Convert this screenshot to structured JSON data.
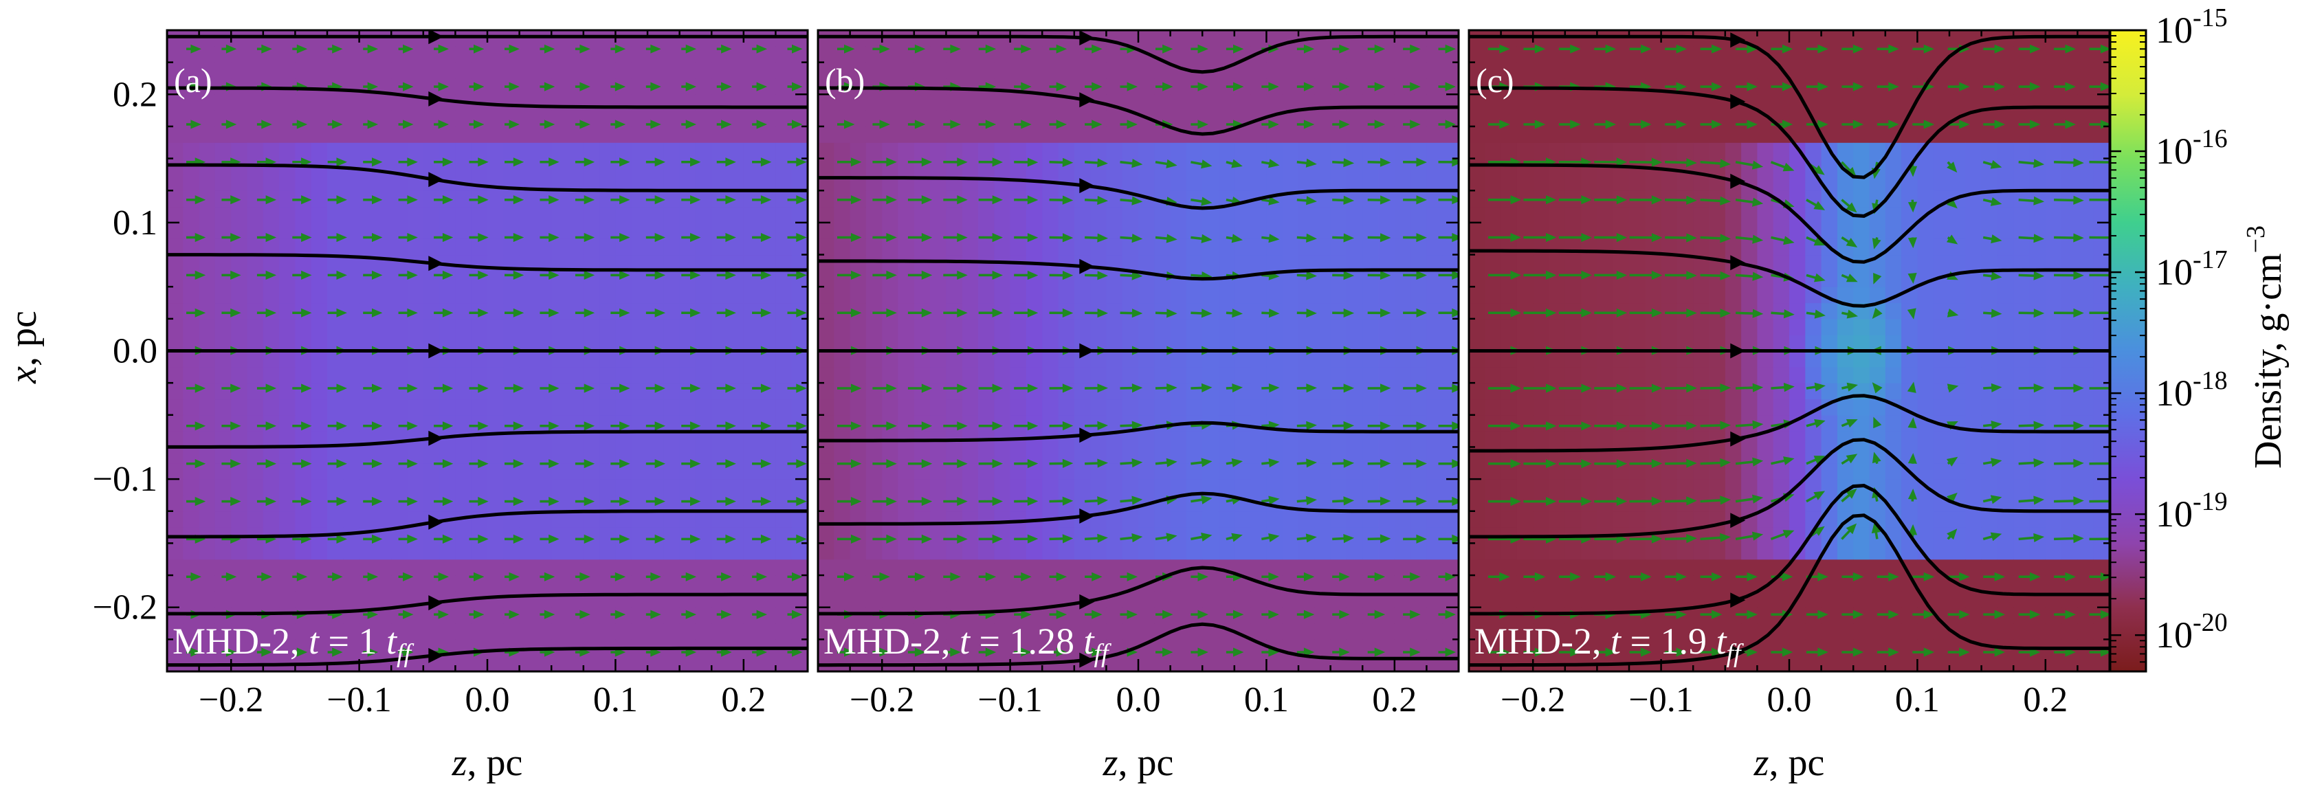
{
  "figure": {
    "colorbar": {
      "label_prefix": "Density, g·cm",
      "label_exponent": "−3",
      "ticks": [
        {
          "base": "10",
          "exp": "-15",
          "value": 1e-15
        },
        {
          "base": "10",
          "exp": "-16",
          "value": 1e-16
        },
        {
          "base": "10",
          "exp": "-17",
          "value": 1e-17
        },
        {
          "base": "10",
          "exp": "-18",
          "value": 1e-18
        },
        {
          "base": "10",
          "exp": "-19",
          "value": 1e-19
        },
        {
          "base": "10",
          "exp": "-20",
          "value": 1e-20
        }
      ],
      "range_log10": [
        -20.3,
        -15.0
      ],
      "colormap": [
        "#7b1c1c",
        "#8f2f4e",
        "#8e44ad",
        "#7a4fd8",
        "#5f6fe6",
        "#4b8fde",
        "#3fb0c0",
        "#3fcf8e",
        "#7be05c",
        "#d4ec3a",
        "#f7f11f"
      ]
    },
    "x_label_symbol": "z",
    "x_label_unit": ", pc",
    "y_label_symbol": "x",
    "y_label_unit": ", pc",
    "arrow_color": "#1f8a1f",
    "fieldline_color": "#000000"
  },
  "chart_data": [
    {
      "type": "heatmap",
      "panel": "(a)",
      "caption_model": "MHD-2, ",
      "caption_t": "t",
      "caption_eq": " = 1 ",
      "caption_tff": "t",
      "caption_sub": "ff",
      "xlabel": "z, pc",
      "ylabel": "x, pc",
      "xlim": [
        -0.25,
        0.25
      ],
      "ylim": [
        -0.25,
        0.25
      ],
      "xticks": [
        "−0.2",
        "−0.1",
        "0.0",
        "0.1",
        "0.2"
      ],
      "xtick_values": [
        -0.2,
        -0.1,
        0.0,
        0.1,
        0.2
      ],
      "yticks": [
        "0.2",
        "0.1",
        "0.0",
        "−0.1",
        "−0.2"
      ],
      "ytick_values": [
        0.2,
        0.1,
        0.0,
        -0.1,
        -0.2
      ],
      "density_log10": {
        "background": -19.3,
        "filament_half_width_pc": 0.16,
        "filament_front_z_pc": -0.18,
        "profile": [
          {
            "z": -0.25,
            "v": -19.3
          },
          {
            "z": -0.18,
            "v": -19.0
          },
          {
            "z": -0.12,
            "v": -18.6
          },
          {
            "z": 0.25,
            "v": -18.5
          }
        ],
        "core": null
      },
      "field_lines": [
        {
          "x0": 0.245,
          "x1": 0.245
        },
        {
          "x0": 0.205,
          "x1": 0.19
        },
        {
          "x0": 0.145,
          "x1": 0.125
        },
        {
          "x0": 0.075,
          "x1": 0.063
        },
        {
          "x0": 0.0,
          "x1": 0.0
        },
        {
          "x0": -0.075,
          "x1": -0.063
        },
        {
          "x0": -0.145,
          "x1": -0.125
        },
        {
          "x0": -0.205,
          "x1": -0.19
        },
        {
          "x0": -0.245,
          "x1": -0.232
        }
      ],
      "velocity_strength": 0.35,
      "collapse": 0.0
    },
    {
      "type": "heatmap",
      "panel": "(b)",
      "caption_model": "MHD-2, ",
      "caption_t": "t",
      "caption_eq": " = 1.28 ",
      "caption_tff": "t",
      "caption_sub": "ff",
      "xlabel": "z, pc",
      "ylabel": "",
      "xlim": [
        -0.25,
        0.25
      ],
      "ylim": [
        -0.25,
        0.25
      ],
      "xticks": [
        "−0.2",
        "−0.1",
        "0.0",
        "0.1",
        "0.2"
      ],
      "xtick_values": [
        -0.2,
        -0.1,
        0.0,
        0.1,
        0.2
      ],
      "density_log10": {
        "background": -19.4,
        "filament_half_width_pc": 0.16,
        "filament_front_z_pc": -0.14,
        "profile": [
          {
            "z": -0.25,
            "v": -19.5
          },
          {
            "z": -0.14,
            "v": -19.1
          },
          {
            "z": -0.05,
            "v": -18.5
          },
          {
            "z": 0.05,
            "v": -18.2
          },
          {
            "z": 0.25,
            "v": -18.3
          }
        ],
        "core": null
      },
      "field_lines": [
        {
          "x0": 0.245,
          "x1": 0.245
        },
        {
          "x0": 0.205,
          "x1": 0.19
        },
        {
          "x0": 0.135,
          "x1": 0.125
        },
        {
          "x0": 0.07,
          "x1": 0.063
        },
        {
          "x0": 0.0,
          "x1": 0.0
        },
        {
          "x0": -0.07,
          "x1": -0.063
        },
        {
          "x0": -0.135,
          "x1": -0.125
        },
        {
          "x0": -0.205,
          "x1": -0.19
        },
        {
          "x0": -0.245,
          "x1": -0.24
        }
      ],
      "velocity_strength": 0.55,
      "collapse": 0.25
    },
    {
      "type": "heatmap",
      "panel": "(c)",
      "caption_model": "MHD-2, ",
      "caption_t": "t",
      "caption_eq": " = 1.9 ",
      "caption_tff": "t",
      "caption_sub": "ff",
      "xlabel": "z, pc",
      "ylabel": "",
      "xlim": [
        -0.25,
        0.25
      ],
      "ylim": [
        -0.25,
        0.25
      ],
      "xticks": [
        "−0.2",
        "−0.1",
        "0.0",
        "0.1",
        "0.2"
      ],
      "xtick_values": [
        -0.2,
        -0.1,
        0.0,
        0.1,
        0.2
      ],
      "density_log10": {
        "background": -19.9,
        "filament_half_width_pc": 0.16,
        "filament_front_z_pc": -0.02,
        "profile": [
          {
            "z": -0.25,
            "v": -19.9
          },
          {
            "z": -0.05,
            "v": -19.7
          },
          {
            "z": 0.0,
            "v": -18.9
          },
          {
            "z": 0.05,
            "v": -17.6
          },
          {
            "z": 0.1,
            "v": -18.2
          },
          {
            "z": 0.25,
            "v": -18.3
          }
        ],
        "core": {
          "z": 0.055,
          "x": 0.0,
          "peak": -17.3,
          "rz": 0.04,
          "rx": 0.07
        }
      },
      "field_lines": [
        {
          "x0": 0.245,
          "x1": 0.245
        },
        {
          "x0": 0.205,
          "x1": 0.19
        },
        {
          "x0": 0.145,
          "x1": 0.125
        },
        {
          "x0": 0.078,
          "x1": 0.063
        },
        {
          "x0": 0.0,
          "x1": 0.0
        },
        {
          "x0": -0.078,
          "x1": -0.063
        },
        {
          "x0": -0.145,
          "x1": -0.125
        },
        {
          "x0": -0.205,
          "x1": -0.19
        },
        {
          "x0": -0.245,
          "x1": -0.232
        }
      ],
      "velocity_strength": 0.9,
      "collapse": 1.0
    }
  ]
}
